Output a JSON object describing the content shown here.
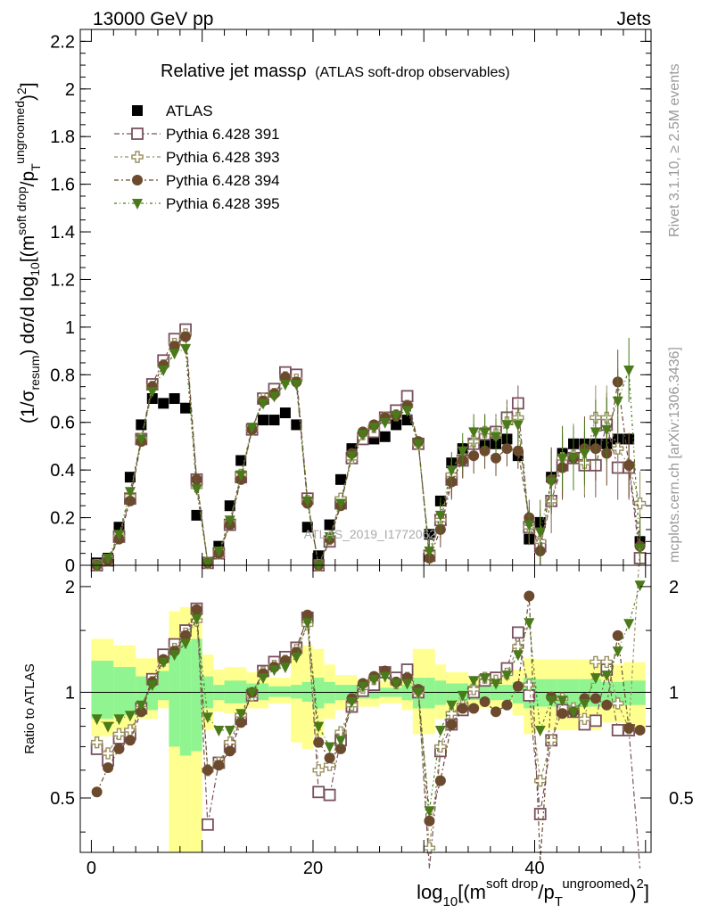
{
  "header": {
    "left": "13000 GeV pp",
    "right": "Jets"
  },
  "side_labels": {
    "rivet": "Rivet 3.1.10, ≥ 2.5M events",
    "mcplots": "mcplots.cern.ch [arXiv:1306.3436]"
  },
  "plot_title": {
    "main": "Relative jet massρ",
    "sub": "(ATLAS soft-drop observables)"
  },
  "watermark": "ATLAS_2019_I1772062",
  "colors": {
    "atlas": "#000000",
    "p391": "#7a5060",
    "p393": "#9a9060",
    "p394": "#6b4a2e",
    "p395": "#4a7a1a",
    "band_inner": "#90f590",
    "band_outer": "#ffff90"
  },
  "chart_data": {
    "type": "scatter",
    "x_axis": {
      "label": "log10[(m^{soft drop}/p_T^{ungroomed})^2]",
      "range": [
        -1,
        50.5
      ],
      "ticks": [
        0,
        20,
        40
      ]
    },
    "main_panel": {
      "y_label": "(1/σ_{resum}) dσ/d log10[(m^{soft drop}/p_T^{ungroomed})^2]",
      "y_range": [
        0,
        2.25
      ],
      "y_ticks": [
        "0",
        "0.2",
        "0.4",
        "0.6",
        "0.8",
        "1",
        "1.2",
        "1.4",
        "1.6",
        "1.8",
        "2",
        "2.2"
      ]
    },
    "ratio_panel": {
      "y_label": "Ratio to ATLAS",
      "y_range": [
        0.35,
        2.3
      ],
      "y_ticks": [
        "0.5",
        "1",
        "2"
      ]
    },
    "x": [
      0.5,
      1.5,
      2.5,
      3.5,
      4.5,
      5.5,
      6.5,
      7.5,
      8.5,
      9.5,
      10.5,
      11.5,
      12.5,
      13.5,
      14.5,
      15.5,
      16.5,
      17.5,
      18.5,
      19.5,
      20.5,
      21.5,
      22.5,
      23.5,
      24.5,
      25.5,
      26.5,
      27.5,
      28.5,
      29.5,
      30.5,
      31.5,
      32.5,
      33.5,
      34.5,
      35.5,
      36.5,
      37.5,
      38.5,
      39.5,
      40.5,
      41.5,
      42.5,
      43.5,
      44.5,
      45.5,
      46.5,
      47.5,
      48.5,
      49.5
    ],
    "series": [
      {
        "name": "ATLAS",
        "marker": "filled-square",
        "values": [
          0.01,
          0.03,
          0.16,
          0.37,
          0.59,
          0.7,
          0.68,
          0.7,
          0.66,
          0.21,
          0.01,
          0.08,
          0.25,
          0.44,
          0.57,
          0.61,
          0.61,
          0.64,
          0.59,
          0.16,
          0.04,
          0.17,
          0.36,
          0.49,
          0.53,
          0.53,
          0.54,
          0.59,
          0.61,
          0.51,
          0.13,
          0.27,
          0.43,
          0.49,
          0.51,
          0.51,
          0.51,
          0.53,
          0.46,
          0.11,
          0.18,
          0.37,
          0.47,
          0.51,
          0.51,
          0.51,
          0.51,
          0.53,
          0.53,
          0.1
        ],
        "ratio": [
          1,
          1,
          1,
          1,
          1,
          1,
          1,
          1,
          1,
          1,
          1,
          1,
          1,
          1,
          1,
          1,
          1,
          1,
          1,
          1,
          1,
          1,
          1,
          1,
          1,
          1,
          1,
          1,
          1,
          1,
          1,
          1,
          1,
          1,
          1,
          1,
          1,
          1,
          1,
          1,
          1,
          1,
          1,
          1,
          1,
          1,
          1,
          1,
          1,
          1
        ]
      },
      {
        "name": "Pythia 6.428 391",
        "marker": "open-square",
        "values": [
          0.0,
          0.02,
          0.12,
          0.28,
          0.53,
          0.76,
          0.86,
          0.95,
          0.99,
          0.36,
          0.01,
          0.05,
          0.17,
          0.37,
          0.57,
          0.7,
          0.74,
          0.81,
          0.8,
          0.28,
          0.0,
          0.1,
          0.26,
          0.45,
          0.53,
          0.56,
          0.62,
          0.65,
          0.71,
          0.51,
          0.04,
          0.19,
          0.36,
          0.44,
          0.51,
          0.55,
          0.56,
          0.62,
          0.68,
          0.16,
          0.08,
          0.27,
          0.42,
          0.45,
          0.42,
          0.42,
          0.59,
          0.41,
          0.41,
          0.03
        ],
        "ratio": [
          0.69,
          0.64,
          0.74,
          0.76,
          0.9,
          1.09,
          1.28,
          1.37,
          1.5,
          1.73,
          0.42,
          0.63,
          0.7,
          0.84,
          0.98,
          1.15,
          1.22,
          1.26,
          1.34,
          1.63,
          0.52,
          0.51,
          0.73,
          0.91,
          1.01,
          1.05,
          1.14,
          1.1,
          1.16,
          1.0,
          0.31,
          0.68,
          0.81,
          0.89,
          1.0,
          1.08,
          1.1,
          1.17,
          1.48,
          0.98,
          0.45,
          0.73,
          0.89,
          0.88,
          0.81,
          0.83,
          1.16,
          0.78,
          0.78,
          0.3
        ]
      },
      {
        "name": "Pythia 6.428 393",
        "marker": "open-cross",
        "values": [
          0.0,
          0.02,
          0.12,
          0.29,
          0.53,
          0.75,
          0.84,
          0.93,
          0.97,
          0.33,
          0.01,
          0.05,
          0.18,
          0.38,
          0.57,
          0.7,
          0.72,
          0.79,
          0.78,
          0.27,
          0.0,
          0.11,
          0.28,
          0.45,
          0.55,
          0.58,
          0.62,
          0.63,
          0.67,
          0.51,
          0.05,
          0.19,
          0.38,
          0.45,
          0.52,
          0.56,
          0.55,
          0.6,
          0.62,
          0.16,
          0.1,
          0.27,
          0.45,
          0.46,
          0.43,
          0.62,
          0.62,
          0.49,
          0.42,
          0.26
        ],
        "ratio": [
          0.72,
          0.67,
          0.76,
          0.78,
          0.9,
          1.07,
          1.23,
          1.33,
          1.47,
          1.6,
          0.6,
          0.63,
          0.72,
          0.86,
          0.98,
          1.14,
          1.19,
          1.23,
          1.32,
          1.56,
          0.6,
          0.62,
          0.77,
          0.92,
          1.03,
          1.09,
          1.14,
          1.06,
          1.1,
          1.0,
          0.36,
          0.7,
          0.87,
          0.92,
          1.02,
          1.1,
          1.08,
          1.13,
          1.35,
          1.05,
          0.56,
          0.73,
          0.96,
          0.9,
          0.84,
          1.22,
          1.22,
          0.93,
          0.79,
          2.6
        ]
      },
      {
        "name": "Pythia 6.428 394",
        "marker": "filled-circle",
        "values": [
          0.0,
          0.02,
          0.11,
          0.27,
          0.52,
          0.75,
          0.84,
          0.92,
          0.96,
          0.36,
          0.01,
          0.05,
          0.17,
          0.36,
          0.57,
          0.69,
          0.72,
          0.79,
          0.77,
          0.26,
          0.0,
          0.11,
          0.25,
          0.47,
          0.56,
          0.59,
          0.62,
          0.63,
          0.67,
          0.52,
          0.03,
          0.15,
          0.35,
          0.44,
          0.46,
          0.48,
          0.45,
          0.49,
          0.48,
          0.2,
          0.06,
          0.36,
          0.41,
          0.45,
          0.49,
          0.49,
          0.47,
          0.77,
          0.42,
          0.08
        ],
        "ratio": [
          0.52,
          0.61,
          0.69,
          0.73,
          0.88,
          1.07,
          1.24,
          1.31,
          1.45,
          1.72,
          0.6,
          0.62,
          0.68,
          0.82,
          1.0,
          1.13,
          1.18,
          1.23,
          1.3,
          1.66,
          0.72,
          0.65,
          0.69,
          0.96,
          1.06,
          1.11,
          1.15,
          1.07,
          1.1,
          1.02,
          0.43,
          0.56,
          0.81,
          0.9,
          0.9,
          0.94,
          0.88,
          0.92,
          1.04,
          1.88,
          0.33,
          0.97,
          0.87,
          0.88,
          0.96,
          0.96,
          0.92,
          1.45,
          0.79,
          0.78
        ]
      },
      {
        "name": "Pythia 6.428 395",
        "marker": "filled-triangle-down",
        "values": [
          0.0,
          0.03,
          0.13,
          0.31,
          0.53,
          0.73,
          0.82,
          0.89,
          0.91,
          0.32,
          0.01,
          0.06,
          0.19,
          0.38,
          0.58,
          0.68,
          0.71,
          0.76,
          0.76,
          0.27,
          0.0,
          0.12,
          0.26,
          0.46,
          0.55,
          0.58,
          0.6,
          0.63,
          0.65,
          0.51,
          0.06,
          0.21,
          0.4,
          0.48,
          0.56,
          0.56,
          0.54,
          0.59,
          0.59,
          0.17,
          0.14,
          0.35,
          0.45,
          0.45,
          0.47,
          0.56,
          0.57,
          0.69,
          0.82,
          0.07
        ],
        "ratio": [
          0.84,
          0.8,
          0.84,
          0.86,
          0.92,
          1.05,
          1.22,
          1.28,
          1.38,
          1.62,
          0.85,
          0.78,
          0.78,
          0.87,
          1.0,
          1.1,
          1.16,
          1.18,
          1.26,
          1.58,
          0.8,
          0.7,
          0.73,
          0.94,
          1.04,
          1.09,
          1.11,
          1.06,
          1.06,
          1.0,
          0.46,
          0.78,
          0.92,
          0.98,
          1.08,
          1.1,
          1.06,
          1.12,
          1.28,
          1.58,
          0.78,
          0.95,
          0.95,
          0.88,
          0.93,
          1.1,
          1.12,
          1.31,
          1.57,
          2.02
        ]
      }
    ],
    "ratio_band_inner": {
      "edges": [
        0,
        2,
        4,
        6,
        7,
        8,
        9,
        10,
        11,
        12,
        14,
        16,
        18,
        19,
        20,
        21,
        22,
        24,
        26,
        28,
        29,
        30,
        31,
        32,
        34,
        36,
        38,
        39,
        40,
        41,
        42,
        44,
        46,
        48,
        50
      ],
      "lo": [
        0.84,
        0.86,
        0.89,
        0.95,
        0.7,
        0.66,
        0.68,
        0.9,
        0.95,
        0.93,
        0.95,
        0.97,
        0.96,
        0.94,
        0.9,
        0.93,
        0.95,
        0.96,
        0.97,
        0.95,
        0.9,
        0.9,
        0.92,
        0.94,
        0.95,
        0.95,
        0.93,
        0.9,
        0.91,
        0.91,
        0.91,
        0.91,
        0.93,
        0.92
      ],
      "hi": [
        1.23,
        1.18,
        1.11,
        1.15,
        1.34,
        1.4,
        1.42,
        1.11,
        1.05,
        1.08,
        1.06,
        1.04,
        1.05,
        1.07,
        1.1,
        1.07,
        1.05,
        1.04,
        1.03,
        1.05,
        1.1,
        1.1,
        1.08,
        1.06,
        1.05,
        1.05,
        1.07,
        1.1,
        1.09,
        1.09,
        1.09,
        1.09,
        1.07,
        1.08
      ]
    },
    "ratio_band_outer": {
      "edges": [
        0,
        2,
        4,
        6,
        7,
        8,
        9,
        10,
        11,
        12,
        14,
        16,
        18,
        19,
        20,
        21,
        22,
        24,
        26,
        28,
        29,
        30,
        31,
        32,
        34,
        36,
        38,
        39,
        40,
        41,
        42,
        44,
        46,
        48,
        50
      ],
      "lo": [
        0.75,
        0.78,
        0.84,
        0.9,
        0.35,
        0.35,
        0.35,
        0.78,
        0.88,
        0.87,
        0.9,
        0.93,
        0.72,
        0.69,
        0.75,
        0.84,
        0.89,
        0.91,
        0.93,
        0.89,
        0.76,
        0.76,
        0.84,
        0.88,
        0.9,
        0.9,
        0.86,
        0.76,
        0.78,
        0.78,
        0.78,
        0.78,
        0.82,
        0.78
      ],
      "hi": [
        1.42,
        1.36,
        1.25,
        1.28,
        1.7,
        1.75,
        1.75,
        1.28,
        1.16,
        1.18,
        1.14,
        1.1,
        1.32,
        1.36,
        1.33,
        1.2,
        1.12,
        1.09,
        1.08,
        1.14,
        1.33,
        1.33,
        1.2,
        1.14,
        1.11,
        1.11,
        1.16,
        1.25,
        1.24,
        1.24,
        1.24,
        1.24,
        1.2,
        1.22
      ]
    }
  }
}
